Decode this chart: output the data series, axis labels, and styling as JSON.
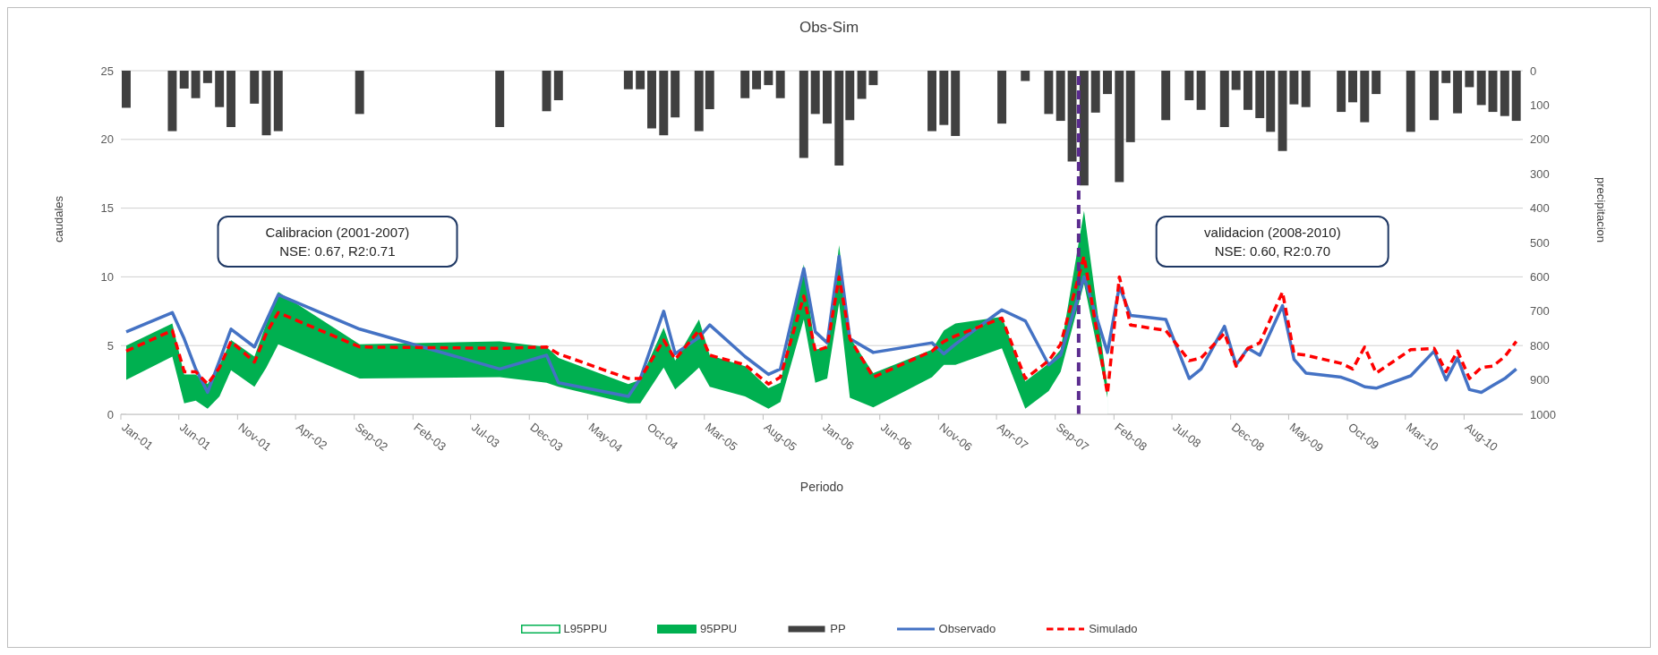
{
  "chart_data": {
    "type": "line",
    "title": "Obs-Sim",
    "xlabel": "Periodo",
    "ylabel": "caudales",
    "y2label": "precipitacion",
    "x": [
      "2001-01-15",
      "2001-05-15",
      "2001-06-15",
      "2001-07-15",
      "2001-08-15",
      "2001-09-15",
      "2001-10-15",
      "2001-12-15",
      "2002-01-15",
      "2002-02-15",
      "2002-09-15",
      "2003-09-15",
      "2004-01-15",
      "2004-02-15",
      "2004-08-15",
      "2004-09-15",
      "2004-11-15",
      "2004-12-15",
      "2005-02-15",
      "2005-03-15",
      "2005-06-15",
      "2005-08-15",
      "2005-09-15",
      "2005-11-15",
      "2005-12-15",
      "2006-01-15",
      "2006-02-15",
      "2006-03-15",
      "2006-05-15",
      "2006-10-15",
      "2006-11-15",
      "2006-12-15",
      "2007-04-15",
      "2007-06-15",
      "2007-08-15",
      "2007-09-15",
      "2007-11-15",
      "2008-01-15",
      "2008-02-15",
      "2008-03-15",
      "2008-06-15",
      "2008-08-15",
      "2008-09-15",
      "2008-11-15",
      "2008-12-15",
      "2009-01-15",
      "2009-02-15",
      "2009-04-15",
      "2009-05-15",
      "2009-06-15",
      "2009-09-15",
      "2009-10-15",
      "2009-11-15",
      "2009-12-15",
      "2010-03-15",
      "2010-05-15",
      "2010-06-15",
      "2010-07-15",
      "2010-08-15",
      "2010-09-15",
      "2010-10-15",
      "2010-11-15",
      "2010-12-15"
    ],
    "series": [
      {
        "name": "L95PPU",
        "type": "area",
        "color": "#ffffff",
        "values": [
          2.5,
          4.2,
          0.8,
          1.0,
          0.4,
          1.3,
          3.2,
          2.0,
          3.4,
          5.1,
          2.6,
          2.7,
          2.3,
          2.0,
          0.8,
          0.8,
          3.4,
          1.8,
          3.4,
          2.0,
          1.3,
          0.4,
          0.9,
          6.9,
          2.3,
          2.6,
          8.1,
          1.2,
          0.5,
          2.7,
          3.6,
          3.6,
          4.8,
          0.4,
          1.7,
          3.1,
          9.5,
          1.2,
          null,
          null,
          null,
          null,
          null,
          null,
          null,
          null,
          null,
          null,
          null,
          null,
          null,
          null,
          null,
          null,
          null,
          null,
          null,
          null,
          null,
          null,
          null,
          null,
          null
        ]
      },
      {
        "name": "95PPU",
        "type": "area",
        "color": "#00b050",
        "values": [
          5.0,
          6.6,
          2.9,
          2.9,
          2.2,
          3.6,
          5.4,
          4.2,
          6.6,
          8.9,
          5.1,
          5.3,
          4.9,
          4.1,
          2.2,
          2.5,
          6.3,
          3.9,
          6.9,
          4.3,
          3.5,
          1.9,
          2.3,
          10.9,
          4.7,
          4.9,
          12.3,
          5.6,
          3.0,
          4.7,
          6.1,
          6.6,
          7.1,
          2.4,
          3.7,
          4.7,
          14.8,
          2.0,
          null,
          null,
          null,
          null,
          null,
          null,
          null,
          null,
          null,
          null,
          null,
          null,
          null,
          null,
          null,
          null,
          null,
          null,
          null,
          null,
          null,
          null,
          null,
          null,
          null
        ]
      },
      {
        "name": "PP",
        "type": "bar",
        "axis": "y2",
        "color": "#404040",
        "x": [
          "2001-01-15",
          "2001-05-15",
          "2001-06-15",
          "2001-07-15",
          "2001-08-15",
          "2001-09-15",
          "2001-10-15",
          "2001-12-15",
          "2002-01-15",
          "2002-02-15",
          "2002-09-15",
          "2003-09-15",
          "2004-01-15",
          "2004-02-15",
          "2004-08-15",
          "2004-09-15",
          "2004-10-15",
          "2004-11-15",
          "2004-12-15",
          "2005-02-15",
          "2005-03-15",
          "2005-06-15",
          "2005-07-15",
          "2005-08-15",
          "2005-09-15",
          "2005-11-15",
          "2005-12-15",
          "2006-01-15",
          "2006-02-15",
          "2006-03-15",
          "2006-04-15",
          "2006-05-15",
          "2006-10-15",
          "2006-11-15",
          "2006-12-15",
          "2007-04-15",
          "2007-06-15",
          "2007-08-15",
          "2007-09-15",
          "2007-10-15",
          "2007-11-15",
          "2007-12-15",
          "2008-01-15",
          "2008-02-15",
          "2008-03-15",
          "2008-06-15",
          "2008-08-15",
          "2008-09-15",
          "2008-11-15",
          "2008-12-15",
          "2009-01-15",
          "2009-02-15",
          "2009-03-15",
          "2009-04-15",
          "2009-05-15",
          "2009-06-15",
          "2009-09-15",
          "2009-10-15",
          "2009-11-15",
          "2009-12-15",
          "2010-03-15",
          "2010-05-15",
          "2010-06-15",
          "2010-07-15",
          "2010-08-15",
          "2010-09-15",
          "2010-10-15",
          "2010-11-15",
          "2010-12-15"
        ],
        "values": [
          108,
          176,
          52,
          80,
          36,
          106,
          164,
          96,
          188,
          176,
          126,
          164,
          118,
          86,
          54,
          54,
          168,
          188,
          136,
          176,
          112,
          80,
          54,
          42,
          80,
          254,
          126,
          154,
          276,
          144,
          82,
          42,
          176,
          158,
          190,
          154,
          30,
          126,
          146,
          264,
          334,
          122,
          68,
          324,
          208,
          144,
          86,
          114,
          164,
          56,
          114,
          138,
          178,
          234,
          98,
          106,
          120,
          92,
          150,
          68,
          178,
          144,
          36,
          124,
          48,
          100,
          120,
          132,
          146
        ]
      },
      {
        "name": "Observado",
        "color": "#4472c4",
        "line_style": "solid",
        "values": [
          6.0,
          7.4,
          5.5,
          3.3,
          1.6,
          3.9,
          6.2,
          4.9,
          6.8,
          8.7,
          6.2,
          3.3,
          4.3,
          2.3,
          1.3,
          2.6,
          7.5,
          4.4,
          5.6,
          6.5,
          4.2,
          2.9,
          3.3,
          10.6,
          6.0,
          5.2,
          11.5,
          5.5,
          4.5,
          5.2,
          4.4,
          5.1,
          7.6,
          6.8,
          3.6,
          4.3,
          10.0,
          4.5,
          9.3,
          7.2,
          6.9,
          2.6,
          3.3,
          6.4,
          3.6,
          4.8,
          4.3,
          7.9,
          4.0,
          3.0,
          2.7,
          2.4,
          2.0,
          1.9,
          2.8,
          4.6,
          2.5,
          4.1,
          1.8,
          1.6,
          2.1,
          2.6,
          3.3
        ]
      },
      {
        "name": "Simulado",
        "color": "#ff0000",
        "line_style": "dashed",
        "values": [
          4.6,
          6.1,
          3.1,
          3.1,
          2.2,
          3.4,
          5.3,
          3.8,
          5.9,
          7.4,
          4.9,
          4.8,
          4.9,
          4.4,
          2.6,
          2.6,
          5.4,
          4.0,
          6.1,
          4.3,
          3.6,
          2.2,
          2.7,
          8.6,
          4.6,
          4.9,
          10.0,
          5.5,
          2.7,
          4.6,
          5.3,
          5.7,
          7.0,
          2.6,
          3.9,
          5.1,
          11.5,
          1.5,
          10.0,
          6.5,
          6.1,
          3.9,
          4.1,
          5.9,
          3.5,
          4.8,
          5.2,
          8.9,
          4.4,
          4.3,
          3.7,
          3.3,
          4.9,
          3.0,
          4.7,
          4.8,
          3.1,
          4.6,
          2.6,
          3.4,
          3.5,
          4.2,
          5.3
        ]
      }
    ],
    "xlim": [
      "2001-01-01",
      "2011-01-01"
    ],
    "xticks": [
      {
        "value": "2001-01-01",
        "label": "Jan-01"
      },
      {
        "value": "2001-06-01",
        "label": "Jun-01"
      },
      {
        "value": "2001-11-01",
        "label": "Nov-01"
      },
      {
        "value": "2002-04-01",
        "label": "Apr-02"
      },
      {
        "value": "2002-09-01",
        "label": "Sep-02"
      },
      {
        "value": "2003-02-01",
        "label": "Feb-03"
      },
      {
        "value": "2003-07-01",
        "label": "Jul-03"
      },
      {
        "value": "2003-12-01",
        "label": "Dec-03"
      },
      {
        "value": "2004-05-01",
        "label": "May-04"
      },
      {
        "value": "2004-10-01",
        "label": "Oct-04"
      },
      {
        "value": "2005-03-01",
        "label": "Mar-05"
      },
      {
        "value": "2005-08-01",
        "label": "Aug-05"
      },
      {
        "value": "2006-01-01",
        "label": "Jan-06"
      },
      {
        "value": "2006-06-01",
        "label": "Jun-06"
      },
      {
        "value": "2006-11-01",
        "label": "Nov-06"
      },
      {
        "value": "2007-04-01",
        "label": "Apr-07"
      },
      {
        "value": "2007-09-01",
        "label": "Sep-07"
      },
      {
        "value": "2008-02-01",
        "label": "Feb-08"
      },
      {
        "value": "2008-07-01",
        "label": "Jul-08"
      },
      {
        "value": "2008-12-01",
        "label": "Dec-08"
      },
      {
        "value": "2009-05-01",
        "label": "May-09"
      },
      {
        "value": "2009-10-01",
        "label": "Oct-09"
      },
      {
        "value": "2010-03-01",
        "label": "Mar-10"
      },
      {
        "value": "2010-08-01",
        "label": "Aug-10"
      }
    ],
    "ylim": [
      0,
      25
    ],
    "yticks": [
      0,
      5,
      10,
      15,
      20,
      25
    ],
    "y2lim": [
      1000,
      0
    ],
    "y2ticks": [
      0,
      100,
      200,
      300,
      400,
      500,
      600,
      700,
      800,
      900,
      1000
    ],
    "ref_lines": [
      {
        "axis": "x",
        "value": "2007-11-01",
        "color": "#5b2c8f",
        "line_style": "dashed"
      }
    ],
    "annotations": [
      "Calibracion (2001-2007)\nNSE: 0.67, R2:0.71",
      "validacion (2008-2010)\nNSE: 0.60, R2:0.70"
    ],
    "grid": "y",
    "legend": "bottom"
  }
}
